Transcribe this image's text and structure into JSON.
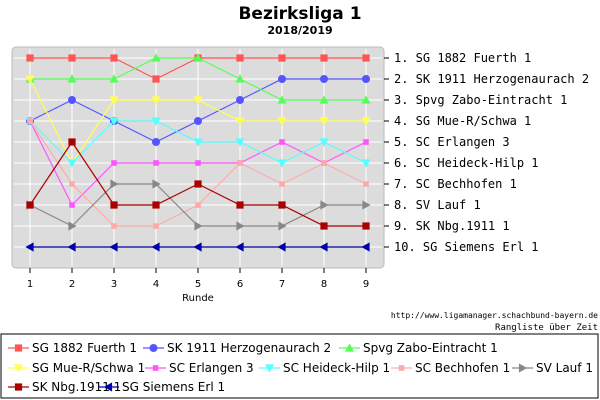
{
  "chart_data": {
    "type": "line",
    "title": "Bezirksliga 1",
    "subtitle": "2018/2019",
    "xlabel": "Runde",
    "ylabel": "",
    "x": [
      1,
      2,
      3,
      4,
      5,
      6,
      7,
      8,
      9
    ],
    "ylim": [
      1,
      10
    ],
    "y_inverted": true,
    "grid": true,
    "legend_position": "bottom",
    "credit_url": "http://www.ligamanager.schachbund-bayern.de",
    "credit_note": "Rangliste über Zeit",
    "final_ranking": [
      "1. SG 1882 Fuerth 1",
      "2. SK 1911 Herzogenaurach 2",
      "3. Spvg Zabo-Eintracht 1",
      "4. SG Mue-R/Schwa 1",
      "5. SC Erlangen 3",
      "6. SC Heideck-Hilp 1",
      "7. SC Bechhofen 1",
      "8. SV Lauf 1",
      "9. SK Nbg.1911 1",
      "10. SG Siemens Erl 1"
    ],
    "series": [
      {
        "name": "SG 1882 Fuerth 1",
        "color": "#ff5555",
        "marker": "square",
        "values": [
          1,
          1,
          1,
          2,
          1,
          1,
          1,
          1,
          1
        ]
      },
      {
        "name": "SK 1911 Herzogenaurach 2",
        "color": "#5555ff",
        "marker": "circle",
        "values": [
          4,
          3,
          4,
          5,
          4,
          3,
          2,
          2,
          2
        ]
      },
      {
        "name": "Spvg Zabo-Eintracht 1",
        "color": "#55ff55",
        "marker": "triangle-up",
        "values": [
          2,
          2,
          2,
          1,
          1,
          2,
          3,
          3,
          3
        ]
      },
      {
        "name": "SG Mue-R/Schwa 1",
        "color": "#ffff55",
        "marker": "triangle-down",
        "values": [
          2,
          6,
          3,
          3,
          3,
          4,
          4,
          4,
          4
        ]
      },
      {
        "name": "SC Erlangen 3",
        "color": "#ff55ff",
        "marker": "square-small",
        "values": [
          4,
          8,
          6,
          6,
          6,
          6,
          5,
          6,
          5
        ]
      },
      {
        "name": "SC Heideck-Hilp 1",
        "color": "#55ffff",
        "marker": "triangle-down",
        "values": [
          4,
          6,
          4,
          4,
          5,
          5,
          6,
          5,
          6
        ]
      },
      {
        "name": "SC Bechhofen 1",
        "color": "#ffaaaa",
        "marker": "square-small",
        "values": [
          4,
          7,
          9,
          9,
          8,
          6,
          7,
          6,
          7
        ]
      },
      {
        "name": "SV Lauf 1",
        "color": "#888888",
        "marker": "triangle-right",
        "values": [
          8,
          9,
          7,
          7,
          9,
          9,
          9,
          8,
          8
        ]
      },
      {
        "name": "SK Nbg.1911 1",
        "color": "#aa0000",
        "marker": "square",
        "values": [
          8,
          5,
          8,
          8,
          7,
          8,
          8,
          9,
          9
        ]
      },
      {
        "name": "SG Siemens Erl 1",
        "color": "#0000aa",
        "marker": "triangle-left",
        "values": [
          10,
          10,
          10,
          10,
          10,
          10,
          10,
          10,
          10
        ]
      }
    ]
  }
}
